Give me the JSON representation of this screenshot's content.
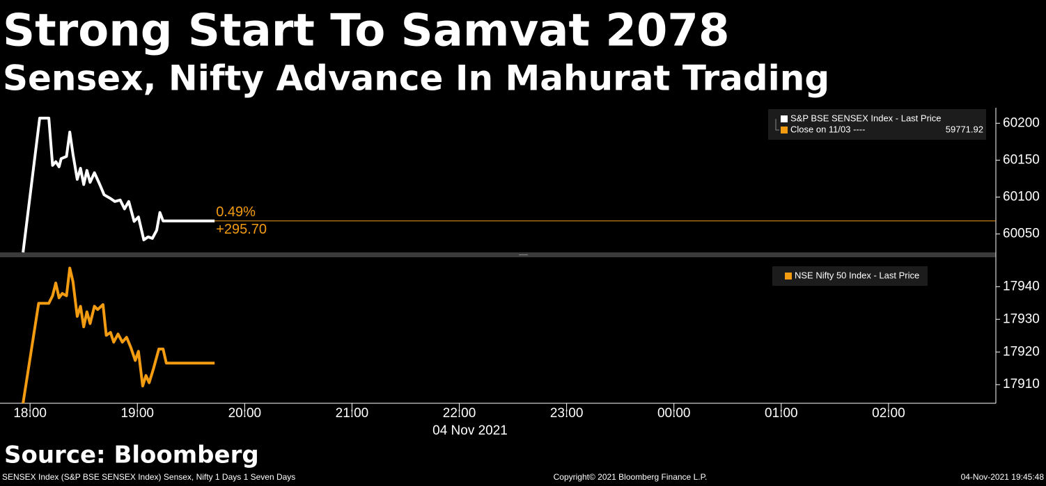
{
  "title": "Strong Start To Samvat 2078",
  "subtitle": "Sensex, Nifty Advance In Mahurat Trading",
  "source": "Source: Bloomberg",
  "footer": {
    "left": "SENSEX Index (S&P BSE SENSEX Index) Sensex, Nifty 1 Days 1 Seven Days",
    "center": "Copyright© 2021 Bloomberg Finance L.P.",
    "right": "04-Nov-2021 19:45:48"
  },
  "chart_data": [
    {
      "type": "line",
      "x": [
        17.935,
        18.09,
        18.175,
        18.21,
        18.24,
        18.27,
        18.29,
        18.34,
        18.37,
        18.4,
        18.44,
        18.47,
        18.5,
        18.53,
        18.56,
        18.6,
        18.65,
        18.69,
        18.75,
        18.79,
        18.84,
        18.88,
        18.92,
        18.97,
        19.01,
        19.06,
        19.1,
        19.14,
        19.18,
        19.21,
        19.24,
        19.72
      ],
      "series": [
        {
          "name": "S&P BSE SENSEX Index - Last Price",
          "color": "#ffffff",
          "values": [
            60025,
            60207,
            60207,
            60143,
            60148,
            60141,
            60152,
            60155,
            60188,
            60158,
            60124,
            60139,
            60117,
            60136,
            60120,
            60133,
            60117,
            60103,
            60098,
            60094,
            60096,
            60084,
            60094,
            60067,
            60073,
            60042,
            60046,
            60044,
            60055,
            60079,
            60067.62,
            60067.62
          ]
        }
      ],
      "reference": {
        "name": "Close on 11/03 ----",
        "value": 59771.92,
        "color": "#f39c12"
      },
      "annotations": [
        "0.49%",
        "+295.70"
      ],
      "xlim": [
        17.72,
        27.0
      ],
      "ylim": [
        60025,
        60221
      ],
      "yticks": [
        60050,
        60100,
        60150,
        60200
      ]
    },
    {
      "type": "line",
      "x": [
        17.935,
        18.08,
        18.175,
        18.21,
        18.24,
        18.27,
        18.3,
        18.34,
        18.37,
        18.4,
        18.44,
        18.47,
        18.5,
        18.53,
        18.56,
        18.6,
        18.63,
        18.68,
        18.71,
        18.75,
        18.78,
        18.82,
        18.86,
        18.9,
        18.94,
        18.98,
        19.01,
        19.05,
        19.08,
        19.11,
        19.15,
        19.2,
        19.24,
        19.27,
        19.72
      ],
      "series": [
        {
          "name": "NSE Nifty 50 Index - Last Price",
          "color": "#f39c12",
          "values": [
            17904.3,
            17934.9,
            17934.9,
            17937.2,
            17941.1,
            17936.6,
            17937.9,
            17937.2,
            17945.7,
            17941.5,
            17930.9,
            17934.0,
            17927.7,
            17932.3,
            17928.7,
            17934.0,
            17933.0,
            17934.5,
            17925.1,
            17926.0,
            17923.0,
            17925.5,
            17923.0,
            17924.5,
            17921.3,
            17917.4,
            17920.2,
            17909.6,
            17912.8,
            17910.6,
            17914.9,
            17920.9,
            17920.9,
            17916.6,
            17916.6
          ]
        }
      ],
      "xlim": [
        17.72,
        27.0
      ],
      "ylim": [
        17904.3,
        17949
      ],
      "yticks": [
        17910,
        17920,
        17930,
        17940
      ],
      "xticks": [
        {
          "value": 18,
          "label": "18:00"
        },
        {
          "value": 19,
          "label": "19:00"
        },
        {
          "value": 20,
          "label": "20:00"
        },
        {
          "value": 21,
          "label": "21:00"
        },
        {
          "value": 22,
          "label": "22:00"
        },
        {
          "value": 23,
          "label": "23:00"
        },
        {
          "value": 24,
          "label": "00:00"
        },
        {
          "value": 25,
          "label": "01:00"
        },
        {
          "value": 26,
          "label": "02:00"
        }
      ],
      "x_label": "04 Nov 2021"
    }
  ]
}
